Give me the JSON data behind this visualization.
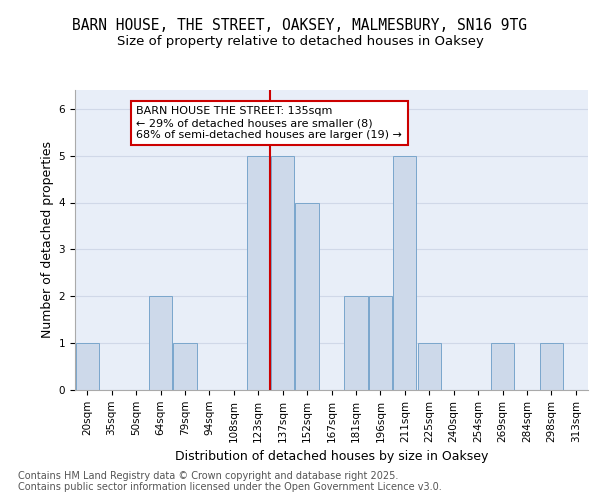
{
  "title_line1": "BARN HOUSE, THE STREET, OAKSEY, MALMESBURY, SN16 9TG",
  "title_line2": "Size of property relative to detached houses in Oaksey",
  "xlabel": "Distribution of detached houses by size in Oaksey",
  "ylabel": "Number of detached properties",
  "categories": [
    "20sqm",
    "35sqm",
    "50sqm",
    "64sqm",
    "79sqm",
    "94sqm",
    "108sqm",
    "123sqm",
    "137sqm",
    "152sqm",
    "167sqm",
    "181sqm",
    "196sqm",
    "211sqm",
    "225sqm",
    "240sqm",
    "254sqm",
    "269sqm",
    "284sqm",
    "298sqm",
    "313sqm"
  ],
  "values": [
    1,
    0,
    0,
    2,
    1,
    0,
    0,
    5,
    5,
    4,
    0,
    2,
    2,
    5,
    1,
    0,
    0,
    1,
    0,
    1,
    0
  ],
  "bar_color": "#cdd9ea",
  "bar_edgecolor": "#7aa6cc",
  "ref_line_index": 8,
  "ref_line_label_line1": "BARN HOUSE THE STREET: 135sqm",
  "ref_line_label_line2": "← 29% of detached houses are smaller (8)",
  "ref_line_label_line3": "68% of semi-detached houses are larger (19) →",
  "annotation_box_edgecolor": "#cc0000",
  "ref_line_color": "#cc0000",
  "ylim_max": 6.4,
  "yticks": [
    0,
    1,
    2,
    3,
    4,
    5,
    6
  ],
  "grid_color": "#d0d8e8",
  "background_color": "#e8eef8",
  "footer": "Contains HM Land Registry data © Crown copyright and database right 2025.\nContains public sector information licensed under the Open Government Licence v3.0.",
  "title_fontsize": 10.5,
  "subtitle_fontsize": 9.5,
  "axis_label_fontsize": 9,
  "tick_fontsize": 7.5,
  "footer_fontsize": 7,
  "annot_fontsize": 8
}
